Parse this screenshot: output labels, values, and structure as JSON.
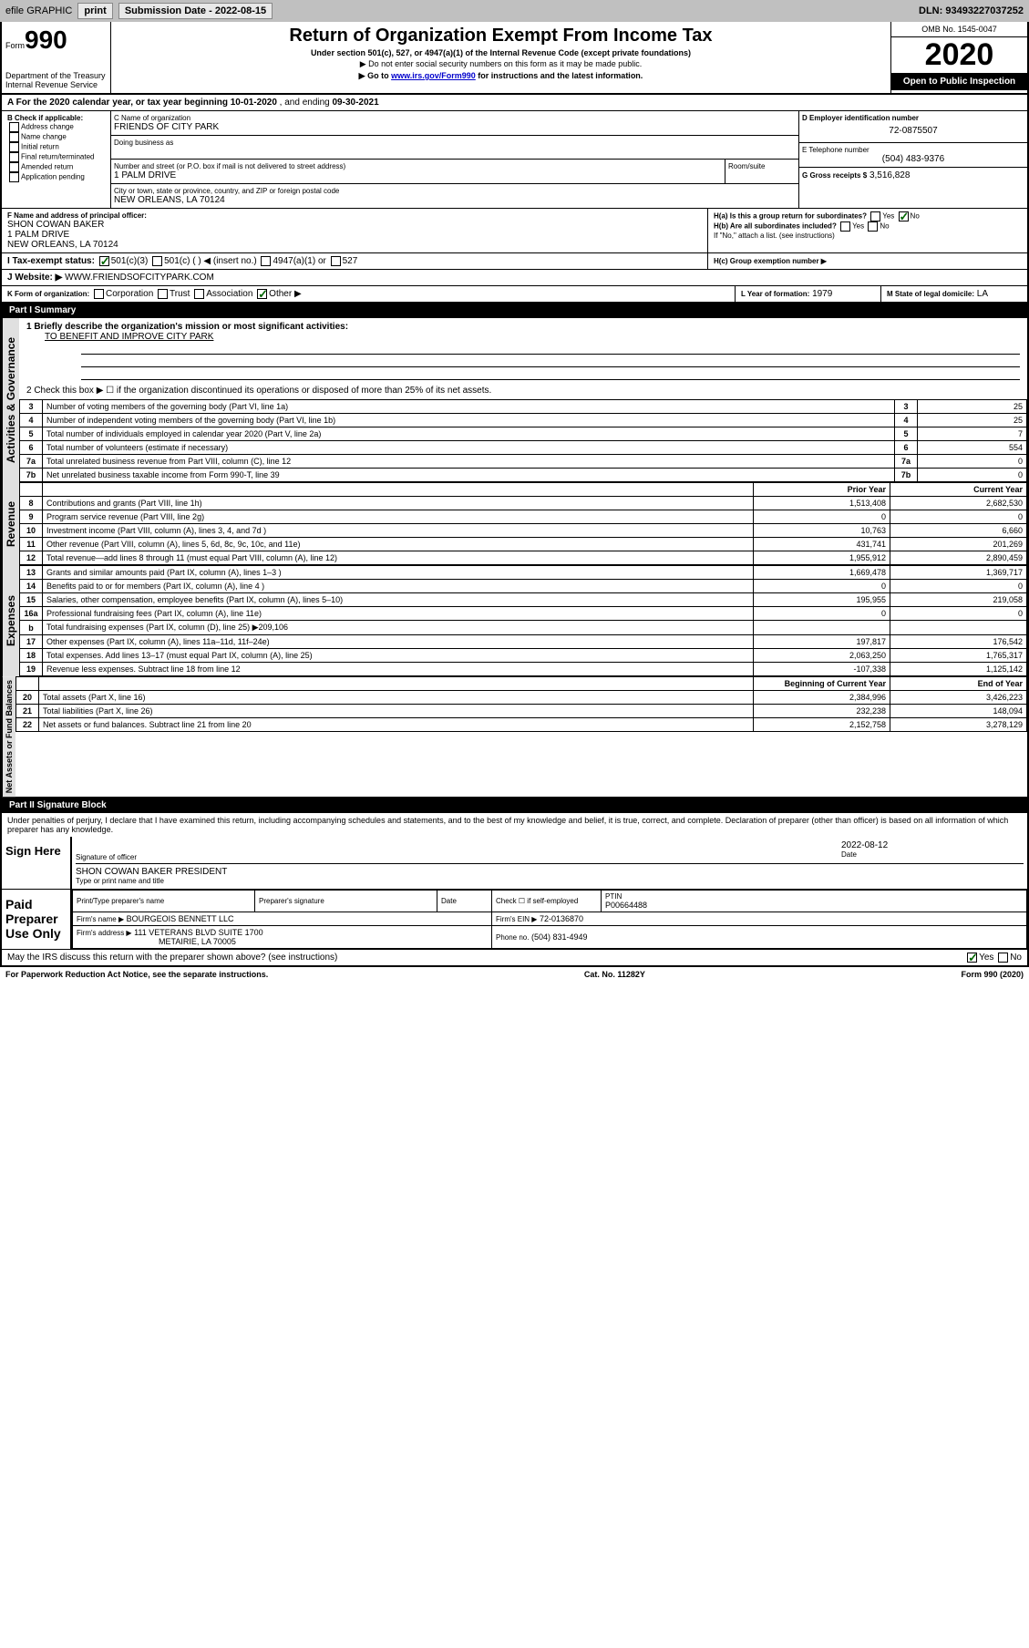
{
  "topbar": {
    "efile_label": "efile GRAPHIC",
    "print_label": "print",
    "submission_label": "Submission Date - 2022-08-15",
    "dln_label": "DLN: 93493227037252"
  },
  "header": {
    "form_label": "Form",
    "form_number": "990",
    "dept": "Department of the Treasury",
    "irs": "Internal Revenue Service",
    "title": "Return of Organization Exempt From Income Tax",
    "subtitle": "Under section 501(c), 527, or 4947(a)(1) of the Internal Revenue Code (except private foundations)",
    "note1": "▶ Do not enter social security numbers on this form as it may be made public.",
    "note2_pre": "▶ Go to ",
    "note2_link": "www.irs.gov/Form990",
    "note2_post": " for instructions and the latest information.",
    "omb": "OMB No. 1545-0047",
    "year": "2020",
    "inspection": "Open to Public Inspection"
  },
  "period": {
    "label": "A For the 2020 calendar year, or tax year beginning ",
    "begin": "10-01-2020",
    "mid": " , and ending ",
    "end": "09-30-2021"
  },
  "box_b": {
    "label": "B Check if applicable:",
    "opts": [
      "Address change",
      "Name change",
      "Initial return",
      "Final return/terminated",
      "Amended return",
      "Application pending"
    ]
  },
  "box_c": {
    "name_label": "C Name of organization",
    "name": "FRIENDS OF CITY PARK",
    "dba_label": "Doing business as",
    "street_label": "Number and street (or P.O. box if mail is not delivered to street address)",
    "room_label": "Room/suite",
    "street": "1 PALM DRIVE",
    "city_label": "City or town, state or province, country, and ZIP or foreign postal code",
    "city": "NEW ORLEANS, LA  70124"
  },
  "box_d": {
    "label": "D Employer identification number",
    "value": "72-0875507"
  },
  "box_e": {
    "label": "E Telephone number",
    "value": "(504) 483-9376"
  },
  "box_f": {
    "label": "F Name and address of principal officer:",
    "name": "SHON COWAN BAKER",
    "street": "1 PALM DRIVE",
    "city": "NEW ORLEANS, LA  70124"
  },
  "box_g": {
    "label": "G Gross receipts $",
    "value": "3,516,828"
  },
  "box_h": {
    "a_label": "H(a)  Is this a group return for subordinates?",
    "b_label": "H(b)  Are all subordinates included?",
    "note": "If \"No,\" attach a list. (see instructions)",
    "c_label": "H(c)  Group exemption number ▶"
  },
  "box_i": {
    "label": "I   Tax-exempt status:",
    "opt1": "501(c)(3)",
    "opt2": "501(c) (  ) ◀ (insert no.)",
    "opt3": "4947(a)(1) or",
    "opt4": "527"
  },
  "box_j": {
    "label": "J   Website: ▶",
    "value": "WWW.FRIENDSOFCITYPARK.COM"
  },
  "box_k": {
    "label": "K Form of organization:",
    "opts": [
      "Corporation",
      "Trust",
      "Association",
      "Other ▶"
    ]
  },
  "box_l": {
    "label": "L Year of formation:",
    "value": "1979"
  },
  "box_m": {
    "label": "M State of legal domicile:",
    "value": "LA"
  },
  "part1": {
    "header": "Part I     Summary",
    "q1_label": "1   Briefly describe the organization's mission or most significant activities:",
    "q1_value": "TO BENEFIT AND IMPROVE CITY PARK",
    "q2_label": "2   Check this box ▶ ☐ if the organization discontinued its operations or disposed of more than 25% of its net assets.",
    "sidebar_activities": "Activities & Governance",
    "sidebar_revenue": "Revenue",
    "sidebar_expenses": "Expenses",
    "sidebar_netassets": "Net Assets or Fund Balances",
    "col_prior": "Prior Year",
    "col_current": "Current Year",
    "col_boy": "Beginning of Current Year",
    "col_eoy": "End of Year",
    "rows_gov": [
      {
        "n": "3",
        "t": "Number of voting members of the governing body (Part VI, line 1a)",
        "v": "25"
      },
      {
        "n": "4",
        "t": "Number of independent voting members of the governing body (Part VI, line 1b)",
        "v": "25"
      },
      {
        "n": "5",
        "t": "Total number of individuals employed in calendar year 2020 (Part V, line 2a)",
        "v": "7"
      },
      {
        "n": "6",
        "t": "Total number of volunteers (estimate if necessary)",
        "v": "554"
      },
      {
        "n": "7a",
        "t": "Total unrelated business revenue from Part VIII, column (C), line 12",
        "v": "0"
      },
      {
        "n": "7b",
        "t": "Net unrelated business taxable income from Form 990-T, line 39",
        "v": "0"
      }
    ],
    "rows_rev": [
      {
        "n": "8",
        "t": "Contributions and grants (Part VIII, line 1h)",
        "p": "1,513,408",
        "c": "2,682,530"
      },
      {
        "n": "9",
        "t": "Program service revenue (Part VIII, line 2g)",
        "p": "0",
        "c": "0"
      },
      {
        "n": "10",
        "t": "Investment income (Part VIII, column (A), lines 3, 4, and 7d )",
        "p": "10,763",
        "c": "6,660"
      },
      {
        "n": "11",
        "t": "Other revenue (Part VIII, column (A), lines 5, 6d, 8c, 9c, 10c, and 11e)",
        "p": "431,741",
        "c": "201,269"
      },
      {
        "n": "12",
        "t": "Total revenue—add lines 8 through 11 (must equal Part VIII, column (A), line 12)",
        "p": "1,955,912",
        "c": "2,890,459"
      }
    ],
    "rows_exp": [
      {
        "n": "13",
        "t": "Grants and similar amounts paid (Part IX, column (A), lines 1–3 )",
        "p": "1,669,478",
        "c": "1,369,717"
      },
      {
        "n": "14",
        "t": "Benefits paid to or for members (Part IX, column (A), line 4 )",
        "p": "0",
        "c": "0"
      },
      {
        "n": "15",
        "t": "Salaries, other compensation, employee benefits (Part IX, column (A), lines 5–10)",
        "p": "195,955",
        "c": "219,058"
      },
      {
        "n": "16a",
        "t": "Professional fundraising fees (Part IX, column (A), line 11e)",
        "p": "0",
        "c": "0"
      },
      {
        "n": "b",
        "t": "Total fundraising expenses (Part IX, column (D), line 25) ▶209,106",
        "p": "",
        "c": ""
      },
      {
        "n": "17",
        "t": "Other expenses (Part IX, column (A), lines 11a–11d, 11f–24e)",
        "p": "197,817",
        "c": "176,542"
      },
      {
        "n": "18",
        "t": "Total expenses. Add lines 13–17 (must equal Part IX, column (A), line 25)",
        "p": "2,063,250",
        "c": "1,765,317"
      },
      {
        "n": "19",
        "t": "Revenue less expenses. Subtract line 18 from line 12",
        "p": "-107,338",
        "c": "1,125,142"
      }
    ],
    "rows_net": [
      {
        "n": "20",
        "t": "Total assets (Part X, line 16)",
        "p": "2,384,996",
        "c": "3,426,223"
      },
      {
        "n": "21",
        "t": "Total liabilities (Part X, line 26)",
        "p": "232,238",
        "c": "148,094"
      },
      {
        "n": "22",
        "t": "Net assets or fund balances. Subtract line 21 from line 20",
        "p": "2,152,758",
        "c": "3,278,129"
      }
    ]
  },
  "part2": {
    "header": "Part II    Signature Block",
    "perjury": "Under penalties of perjury, I declare that I have examined this return, including accompanying schedules and statements, and to the best of my knowledge and belief, it is true, correct, and complete. Declaration of preparer (other than officer) is based on all information of which preparer has any knowledge.",
    "sign_here": "Sign Here",
    "sig_officer_label": "Signature of officer",
    "sig_date": "2022-08-12",
    "date_label": "Date",
    "officer_name": "SHON COWAN BAKER  PRESIDENT",
    "officer_name_label": "Type or print name and title",
    "paid_label": "Paid Preparer Use Only",
    "prep_name_label": "Print/Type preparer's name",
    "prep_sig_label": "Preparer's signature",
    "prep_date_label": "Date",
    "check_self": "Check ☐ if self-employed",
    "ptin_label": "PTIN",
    "ptin": "P00664488",
    "firm_name_label": "Firm's name    ▶",
    "firm_name": "BOURGEOIS BENNETT LLC",
    "firm_ein_label": "Firm's EIN ▶",
    "firm_ein": "72-0136870",
    "firm_addr_label": "Firm's address ▶",
    "firm_addr1": "111 VETERANS BLVD SUITE 1700",
    "firm_addr2": "METAIRIE, LA  70005",
    "phone_label": "Phone no.",
    "phone": "(504) 831-4949",
    "discuss": "May the IRS discuss this return with the preparer shown above? (see instructions)"
  },
  "footer": {
    "left": "For Paperwork Reduction Act Notice, see the separate instructions.",
    "mid": "Cat. No. 11282Y",
    "right": "Form 990 (2020)"
  },
  "yesno": {
    "yes": "Yes",
    "no": "No"
  }
}
